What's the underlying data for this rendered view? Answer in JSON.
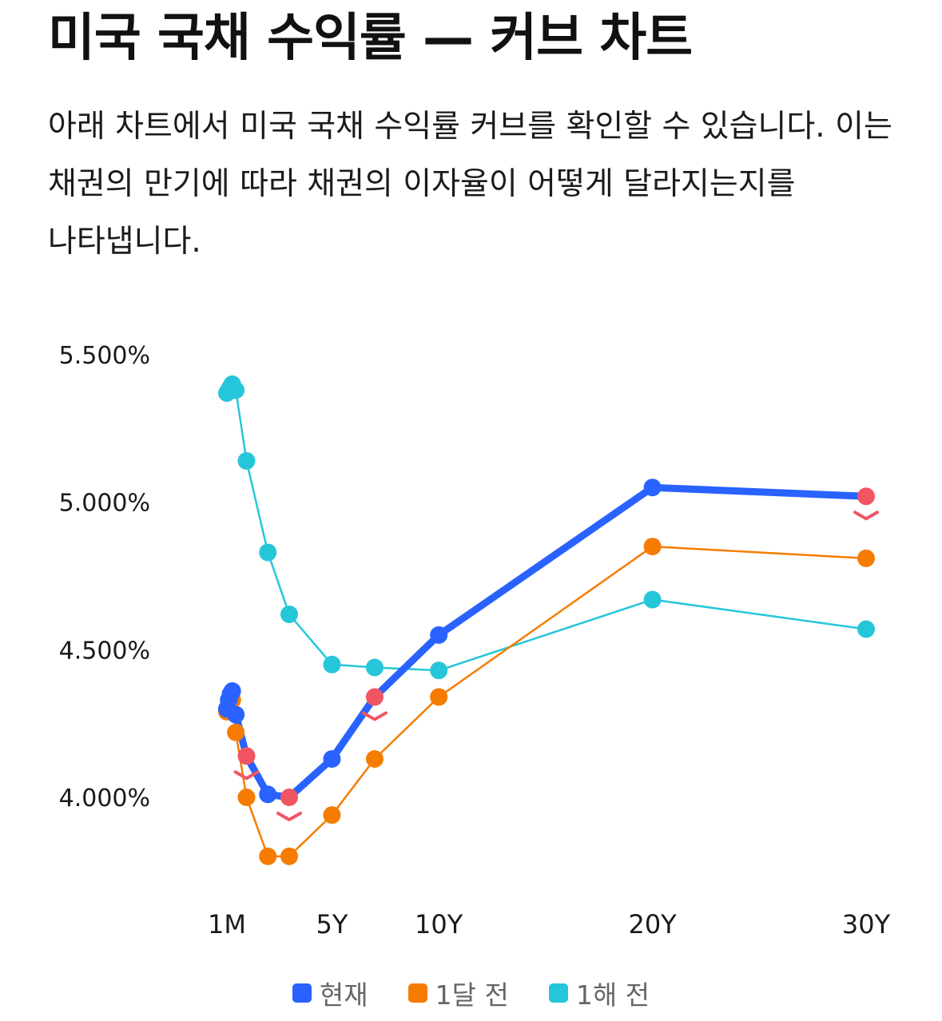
{
  "header": {
    "title": "미국 국채 수익률 — 커브 차트",
    "description": "아래 차트에서 미국 국채 수익률 커브를 확인할 수 있습니다. 이는 채권의 만기에 따라 채권의 이자율이 어떻게 달라지는지를 나타냅니다."
  },
  "colors": {
    "current": "#2962ff",
    "month_ago": "#f57c00",
    "year_ago": "#26c6da",
    "down_marker": "#f25562",
    "text": "#1a1a1a",
    "legend_text": "#666666"
  },
  "chart_data": {
    "type": "line",
    "title": "",
    "xlabel": "",
    "ylabel": "",
    "x_unit": "years to maturity",
    "ylim": [
      3.75,
      5.5
    ],
    "yticks": [
      {
        "value": 4.0,
        "label": "4.000%"
      },
      {
        "value": 4.5,
        "label": "4.500%"
      },
      {
        "value": 5.0,
        "label": "5.000%"
      },
      {
        "value": 5.5,
        "label": "5.500%"
      }
    ],
    "xticks": [
      {
        "value": 0.0833,
        "label": "1M"
      },
      {
        "value": 5,
        "label": "5Y"
      },
      {
        "value": 10,
        "label": "10Y"
      },
      {
        "value": 20,
        "label": "20Y"
      },
      {
        "value": 30,
        "label": "30Y"
      }
    ],
    "maturities": [
      0.0833,
      0.1667,
      0.25,
      0.3333,
      0.5,
      1,
      2,
      3,
      5,
      7,
      10,
      20,
      30
    ],
    "series": [
      {
        "name": "현재",
        "key": "current",
        "values": [
          4.3,
          4.33,
          4.35,
          4.36,
          4.28,
          4.14,
          4.01,
          4.0,
          4.13,
          4.34,
          4.55,
          5.05,
          5.02
        ],
        "down_markers": [
          5,
          7,
          9,
          12
        ]
      },
      {
        "name": "1달 전",
        "key": "month_ago",
        "values": [
          4.29,
          4.31,
          4.32,
          4.33,
          4.22,
          4.0,
          3.8,
          3.8,
          3.94,
          4.13,
          4.34,
          4.85,
          4.81
        ]
      },
      {
        "name": "1해 전",
        "key": "year_ago",
        "values": [
          5.37,
          5.38,
          5.39,
          5.4,
          5.38,
          5.14,
          4.83,
          4.62,
          4.45,
          4.44,
          4.43,
          4.67,
          4.57
        ]
      }
    ],
    "legend_position": "bottom"
  }
}
